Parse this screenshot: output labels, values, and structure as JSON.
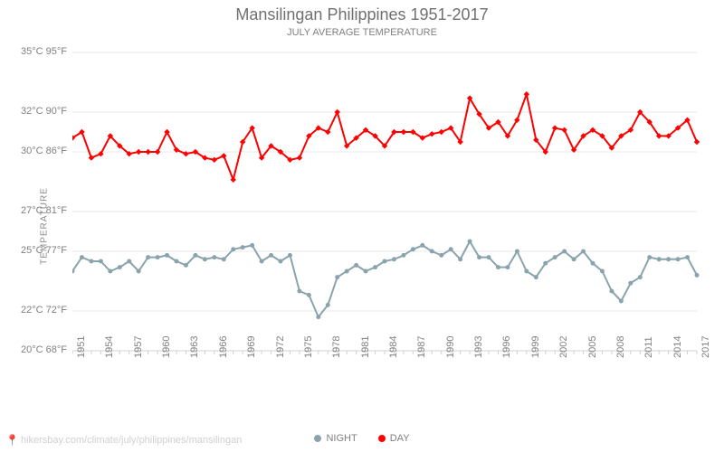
{
  "title": "Mansilingan Philippines 1951-2017",
  "subtitle": "JULY AVERAGE TEMPERATURE",
  "ylabel": "TEMPERATURE",
  "attribution": "hikersbay.com/climate/july/philippines/mansilingan",
  "legend": {
    "night": "NIGHT",
    "day": "DAY"
  },
  "chart": {
    "type": "line",
    "background_color": "#ffffff",
    "grid_color": "#e8e8e8",
    "axis_color": "#d0d0d0",
    "text_color": "#808080",
    "y_ticks": [
      {
        "c": 20,
        "f": 68
      },
      {
        "c": 22,
        "f": 72
      },
      {
        "c": 25,
        "f": 77
      },
      {
        "c": 27,
        "f": 81
      },
      {
        "c": 30,
        "f": 86
      },
      {
        "c": 32,
        "f": 90
      },
      {
        "c": 35,
        "f": 95
      }
    ],
    "y_min_c": 20,
    "y_max_c": 35,
    "years": [
      1951,
      1952,
      1953,
      1954,
      1955,
      1956,
      1957,
      1958,
      1959,
      1960,
      1961,
      1962,
      1963,
      1964,
      1965,
      1966,
      1967,
      1968,
      1969,
      1970,
      1971,
      1972,
      1973,
      1974,
      1975,
      1976,
      1977,
      1978,
      1979,
      1980,
      1981,
      1982,
      1983,
      1984,
      1985,
      1986,
      1987,
      1988,
      1989,
      1990,
      1991,
      1992,
      1993,
      1994,
      1995,
      1996,
      1997,
      1998,
      1999,
      2000,
      2001,
      2002,
      2003,
      2004,
      2005,
      2006,
      2007,
      2008,
      2009,
      2010,
      2011,
      2012,
      2013,
      2014,
      2015,
      2016,
      2017
    ],
    "x_tick_step": 3,
    "series": {
      "day": {
        "label": "DAY",
        "color": "#ff0000",
        "marker": "diamond",
        "marker_size": 5,
        "line_width": 2,
        "values": [
          30.7,
          31.0,
          29.7,
          29.9,
          30.8,
          30.3,
          29.9,
          30.0,
          30.0,
          30.0,
          31.0,
          30.1,
          29.9,
          30.0,
          29.7,
          29.6,
          29.8,
          28.6,
          30.5,
          31.2,
          29.7,
          30.3,
          30.0,
          29.6,
          29.7,
          30.8,
          31.2,
          31.0,
          32.0,
          30.3,
          30.7,
          31.1,
          30.8,
          30.3,
          31.0,
          31.0,
          31.0,
          30.7,
          30.9,
          31.0,
          31.2,
          30.5,
          32.7,
          31.9,
          31.2,
          31.5,
          30.8,
          31.6,
          32.9,
          30.6,
          30.0,
          31.2,
          31.1,
          30.1,
          30.8,
          31.1,
          30.8,
          30.2,
          30.8,
          31.1,
          32.0,
          31.5,
          30.8,
          30.8,
          31.2,
          31.6,
          30.5
        ],
        "_comment": "Daytime July avg temp in °C, 1951–2017, estimated from chart"
      },
      "night": {
        "label": "NIGHT",
        "color": "#8aa4ad",
        "marker": "circle",
        "marker_size": 4,
        "line_width": 2,
        "values": [
          24.0,
          24.7,
          24.5,
          24.5,
          24.0,
          24.2,
          24.5,
          24.0,
          24.7,
          24.7,
          24.8,
          24.5,
          24.3,
          24.8,
          24.6,
          24.7,
          24.6,
          25.1,
          25.2,
          25.3,
          24.5,
          24.8,
          24.5,
          24.8,
          23.0,
          22.8,
          21.7,
          22.3,
          23.7,
          24.0,
          24.3,
          24.0,
          24.2,
          24.5,
          24.6,
          24.8,
          25.1,
          25.3,
          25.0,
          24.8,
          25.1,
          24.6,
          25.5,
          24.7,
          24.7,
          24.2,
          24.2,
          25.0,
          24.0,
          23.7,
          24.4,
          24.7,
          25.0,
          24.6,
          25.0,
          24.4,
          24.0,
          23.0,
          22.5,
          23.4,
          23.7,
          24.7,
          24.6,
          24.6,
          24.6,
          24.7,
          23.8
        ],
        "_comment": "Nighttime July avg temp in °C, 1951–2017, estimated from chart"
      }
    }
  }
}
